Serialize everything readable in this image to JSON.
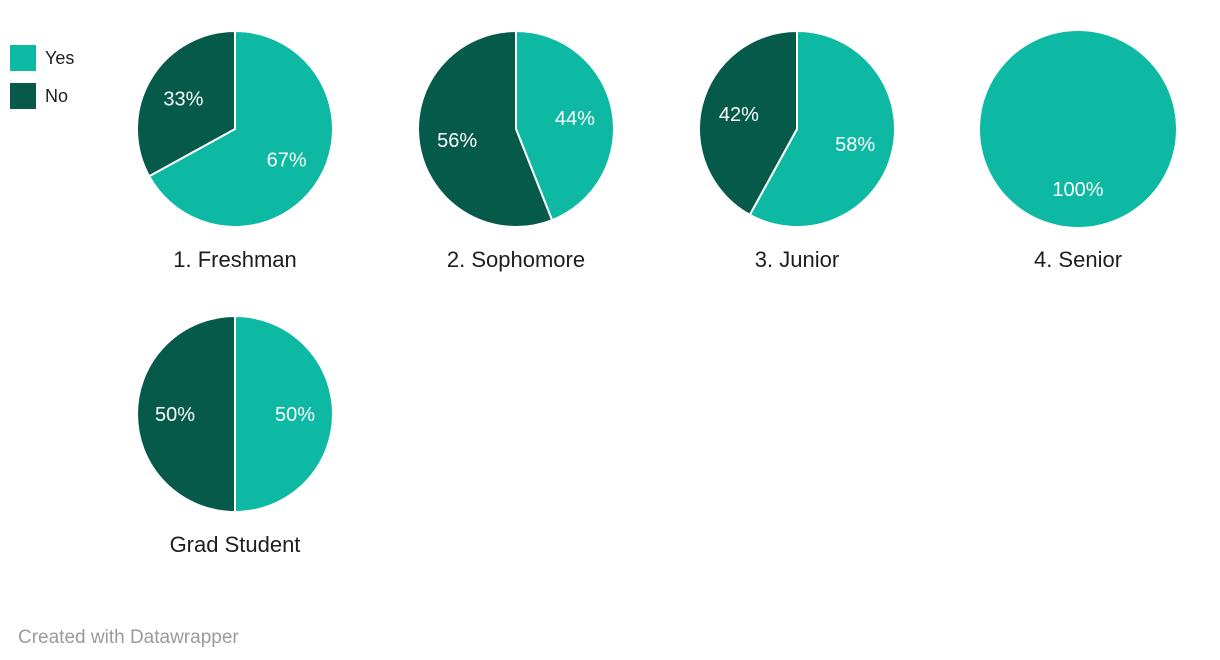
{
  "chart_data": {
    "type": "pie",
    "subtype": "small-multiples",
    "value_suffix": "%",
    "start_angle": "top",
    "direction": "clockwise",
    "legend_position": "top-left",
    "grid": {
      "columns": 4,
      "rows": 2
    },
    "colors": {
      "yes": "#0db9a2",
      "no": "#065a4a"
    },
    "series_labels": [
      "Yes",
      "No"
    ],
    "legend": [
      {
        "label": "Yes",
        "color": "#0db9a2"
      },
      {
        "label": "No",
        "color": "#065a4a"
      }
    ],
    "pies": [
      {
        "label": "1. Freshman",
        "values": [
          67,
          33
        ]
      },
      {
        "label": "2. Sophomore",
        "values": [
          44,
          56
        ]
      },
      {
        "label": "3. Junior",
        "values": [
          58,
          42
        ]
      },
      {
        "label": "4. Senior",
        "values": [
          100,
          0
        ]
      },
      {
        "label": "Grad Student",
        "values": [
          50,
          50
        ]
      }
    ]
  },
  "footer": {
    "attribution": "Created with Datawrapper"
  }
}
